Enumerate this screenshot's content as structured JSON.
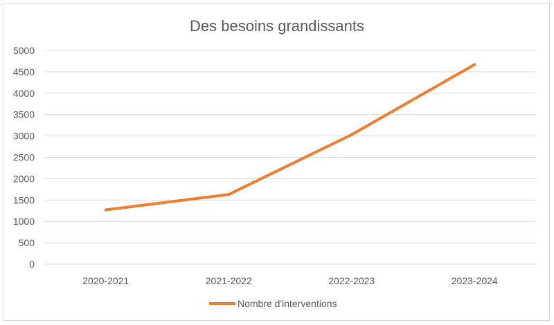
{
  "chart_data": {
    "type": "line",
    "title": "Des besoins grandissants",
    "xlabel": "",
    "ylabel": "",
    "categories": [
      "2020-2021",
      "2021-2022",
      "2022-2023",
      "2023-2024"
    ],
    "series": [
      {
        "name": "Nombre d'interventions",
        "values": [
          1270,
          1630,
          3030,
          4670
        ]
      }
    ],
    "ylim": [
      0,
      5000
    ],
    "yticks": [
      "0",
      "500",
      "1000",
      "1500",
      "2000",
      "2500",
      "3000",
      "3500",
      "4000",
      "4500",
      "5000"
    ],
    "grid": true,
    "legend_position": "bottom",
    "colors": {
      "series": "#ED7D31",
      "grid": "#d9d9d9",
      "text": "#595959"
    }
  }
}
